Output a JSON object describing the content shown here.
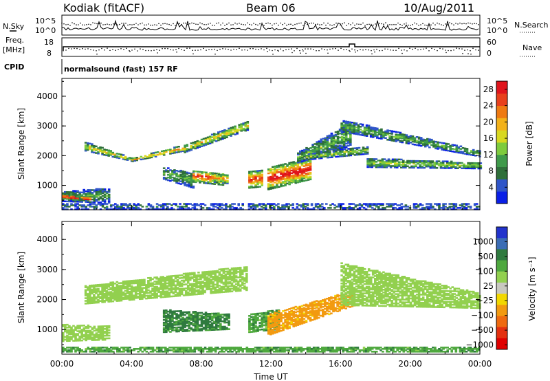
{
  "header": {
    "station": "Kodiak (fitACF)",
    "beam": "Beam 06",
    "date": "10/Aug/2011"
  },
  "top_panels": {
    "nsky_label": "N.Sky",
    "nsearch_label": "N.Search",
    "nsky_ticks": [
      "10^5",
      "10^0"
    ],
    "nsearch_ticks": [
      "10^5",
      "10^0"
    ],
    "freq_label_1": "Freq.",
    "freq_label_2": "[MHz]",
    "freq_ticks": [
      "18",
      "8"
    ],
    "nave_label": "Nave",
    "nave_ticks": [
      "60",
      "0"
    ],
    "cpid_label": "CPID",
    "cpid_text": "normalsound (fast) 157 RF"
  },
  "colors": {
    "power": [
      "#0a1fe6",
      "#2f55c8",
      "#2f6f3a",
      "#3f9a4a",
      "#7ecb3d",
      "#d8d820",
      "#f3b21a",
      "#ef7a12",
      "#e8401c",
      "#e0141c"
    ],
    "velocity": [
      "#2233cc",
      "#3b6db5",
      "#2f7a3f",
      "#4ea83e",
      "#92d04f",
      "#c8c8c0",
      "#f2d800",
      "#f29a10",
      "#ef6a10",
      "#e43010",
      "#e00000"
    ]
  },
  "chart_data": [
    {
      "type": "heatmap",
      "title": "Power",
      "xlabel": "Time UT",
      "ylabel": "Slant Range [km]",
      "x_ticks": [
        "00:00",
        "04:00",
        "08:00",
        "12:00",
        "16:00",
        "20:00",
        "00:00"
      ],
      "x_hours": [
        0,
        4,
        8,
        12,
        16,
        20,
        24
      ],
      "xlim_hours": [
        0,
        24
      ],
      "y_ticks": [
        1000,
        2000,
        3000,
        4000
      ],
      "ylim": [
        180,
        4600
      ],
      "colorbar_label": "Power [dB]",
      "colorbar_ticks": [
        "4",
        "8",
        "12",
        "16",
        "20",
        "24",
        "28"
      ],
      "clim": [
        0,
        30
      ],
      "regions": [
        {
          "x": [
            0.0,
            2.7
          ],
          "y0": [
            780,
            900
          ],
          "y1": [
            450,
            400
          ],
          "value": 9
        },
        {
          "x": [
            0.0,
            1.6
          ],
          "y0": [
            670,
            580
          ],
          "y1": [
            540,
            460
          ],
          "value": 26
        },
        {
          "x": [
            1.3,
            4.0
          ],
          "y0": [
            2450,
            1900
          ],
          "y1": [
            2150,
            1800
          ],
          "value": 14
        },
        {
          "x": [
            4.0,
            7.0
          ],
          "y0": [
            1900,
            2350
          ],
          "y1": [
            1800,
            2150
          ],
          "value": 18
        },
        {
          "x": [
            7.0,
            10.6
          ],
          "y0": [
            2350,
            3150
          ],
          "y1": [
            2100,
            2850
          ],
          "value": 15
        },
        {
          "x": [
            5.8,
            7.5
          ],
          "y0": [
            1600,
            1400
          ],
          "y1": [
            1200,
            900
          ],
          "value": 10
        },
        {
          "x": [
            7.5,
            9.2
          ],
          "y0": [
            1500,
            1400
          ],
          "y1": [
            1100,
            1000
          ],
          "value": 22
        },
        {
          "x": [
            8.6,
            9.5
          ],
          "y0": [
            1400,
            1350
          ],
          "y1": [
            1100,
            1050
          ],
          "value": 18
        },
        {
          "x": [
            10.7,
            11.5
          ],
          "y0": [
            1450,
            1500
          ],
          "y1": [
            900,
            950
          ],
          "value": 22
        },
        {
          "x": [
            11.8,
            14.3
          ],
          "y0": [
            1600,
            1900
          ],
          "y1": [
            850,
            1200
          ],
          "value": 24
        },
        {
          "x": [
            13.5,
            16.5
          ],
          "y0": [
            2100,
            3100
          ],
          "y1": [
            1750,
            2300
          ],
          "value": 10
        },
        {
          "x": [
            14.0,
            17.5
          ],
          "y0": [
            2050,
            2300
          ],
          "y1": [
            1850,
            2050
          ],
          "value": 12
        },
        {
          "x": [
            16.0,
            24.0
          ],
          "y0": [
            3200,
            2150
          ],
          "y1": [
            2800,
            1950
          ],
          "value": 10
        },
        {
          "x": [
            17.5,
            24.0
          ],
          "y0": [
            1900,
            1750
          ],
          "y1": [
            1600,
            1550
          ],
          "value": 12
        },
        {
          "x": [
            0.0,
            24.0
          ],
          "y0": [
            380,
            380
          ],
          "y1": [
            180,
            180
          ],
          "value": 6
        }
      ]
    },
    {
      "type": "heatmap",
      "title": "Velocity",
      "xlabel": "Time UT",
      "ylabel": "Slant Range [km]",
      "x_ticks": [
        "00:00",
        "04:00",
        "08:00",
        "12:00",
        "16:00",
        "20:00",
        "00:00"
      ],
      "x_hours": [
        0,
        4,
        8,
        12,
        16,
        20,
        24
      ],
      "xlim_hours": [
        0,
        24
      ],
      "y_ticks": [
        1000,
        2000,
        3000,
        4000
      ],
      "ylim": [
        180,
        4600
      ],
      "colorbar_label": "Velocity [m s⁻¹]",
      "colorbar_ticks": [
        "1000",
        "500",
        "100",
        "25",
        "−25",
        "−100",
        "−500",
        "−1000"
      ],
      "regions": [
        {
          "x": [
            0.0,
            2.7
          ],
          "y0": [
            1150,
            1100
          ],
          "y1": [
            600,
            650
          ],
          "value": 0
        },
        {
          "x": [
            1.3,
            10.6
          ],
          "y0": [
            2450,
            3100
          ],
          "y1": [
            1850,
            2300
          ],
          "value": 5
        },
        {
          "x": [
            5.8,
            9.6
          ],
          "y0": [
            1650,
            1500
          ],
          "y1": [
            900,
            1000
          ],
          "value": 60
        },
        {
          "x": [
            10.7,
            12.4
          ],
          "y0": [
            1500,
            1650
          ],
          "y1": [
            900,
            1000
          ],
          "value": 40
        },
        {
          "x": [
            11.8,
            16.8
          ],
          "y0": [
            1500,
            2300
          ],
          "y1": [
            800,
            1800
          ],
          "value": -150
        },
        {
          "x": [
            16.0,
            24.0
          ],
          "y0": [
            3200,
            2200
          ],
          "y1": [
            1800,
            1700
          ],
          "value": 5
        },
        {
          "x": [
            0.0,
            24.0
          ],
          "y0": [
            430,
            430
          ],
          "y1": [
            250,
            250
          ],
          "value": 40
        }
      ]
    }
  ]
}
